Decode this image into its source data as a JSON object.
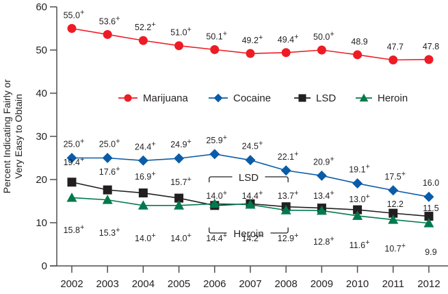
{
  "chart_data": {
    "type": "line",
    "title": "",
    "xlabel": "",
    "ylabel": "Percent Indicating Fairly or Very Easy to Obtain",
    "ylabel_lines": [
      "Percent Indicating Fairly or",
      "Very Easy to Obtain"
    ],
    "ylim": [
      0,
      60
    ],
    "yticks": [
      0,
      10,
      20,
      30,
      40,
      50,
      60
    ],
    "grid": false,
    "legend_position": "inside-middle",
    "x": [
      "2002",
      "2003",
      "2004",
      "2005",
      "2006",
      "2007",
      "2008",
      "2009",
      "2010",
      "2011",
      "2012"
    ],
    "series": [
      {
        "name": "Marijuana",
        "color": "#ed1c24",
        "marker": "circle",
        "values": [
          55.0,
          53.6,
          52.2,
          51.0,
          50.1,
          49.2,
          49.4,
          50.0,
          48.9,
          47.7,
          47.8
        ],
        "labels": [
          "55.0+",
          "53.6+",
          "52.2+",
          "51.0+",
          "50.1+",
          "49.2+",
          "49.4+",
          "50.0+",
          "48.9",
          "47.7",
          "47.8"
        ]
      },
      {
        "name": "Cocaine",
        "color": "#0a5ca8",
        "marker": "diamond",
        "values": [
          25.0,
          25.0,
          24.4,
          24.9,
          25.9,
          24.5,
          22.1,
          20.9,
          19.1,
          17.5,
          16.0
        ],
        "labels": [
          "25.0+",
          "25.0+",
          "24.4+",
          "24.9+",
          "25.9+",
          "24.5+",
          "22.1+",
          "20.9+",
          "19.1+",
          "17.5+",
          "16.0"
        ]
      },
      {
        "name": "LSD",
        "color": "#231f20",
        "marker": "square",
        "values": [
          19.4,
          17.6,
          16.9,
          15.7,
          14.0,
          14.4,
          13.7,
          13.4,
          13.0,
          12.2,
          11.5
        ],
        "labels": [
          "19.4+",
          "17.6+",
          "16.9+",
          "15.7+",
          "14.0+",
          "14.4+",
          "13.7+",
          "13.4+",
          "13.0+",
          "12.2",
          "11.5"
        ]
      },
      {
        "name": "Heroin",
        "color": "#007a4d",
        "marker": "triangle",
        "values": [
          15.8,
          15.3,
          14.0,
          14.0,
          14.4,
          14.2,
          12.9,
          12.8,
          11.6,
          10.7,
          9.9
        ],
        "labels": [
          "15.8+",
          "15.3+",
          "14.0+",
          "14.0+",
          "14.4+",
          "14.2+",
          "12.9+",
          "12.8+",
          "11.6+",
          "10.7+",
          "9.9"
        ]
      }
    ],
    "annotations": [
      {
        "text": "LSD",
        "type": "bracket-above",
        "covers": [
          "2006",
          "2007",
          "2008"
        ]
      },
      {
        "text": "Heroin",
        "type": "bracket-below",
        "covers": [
          "2006",
          "2007",
          "2008"
        ]
      }
    ]
  }
}
